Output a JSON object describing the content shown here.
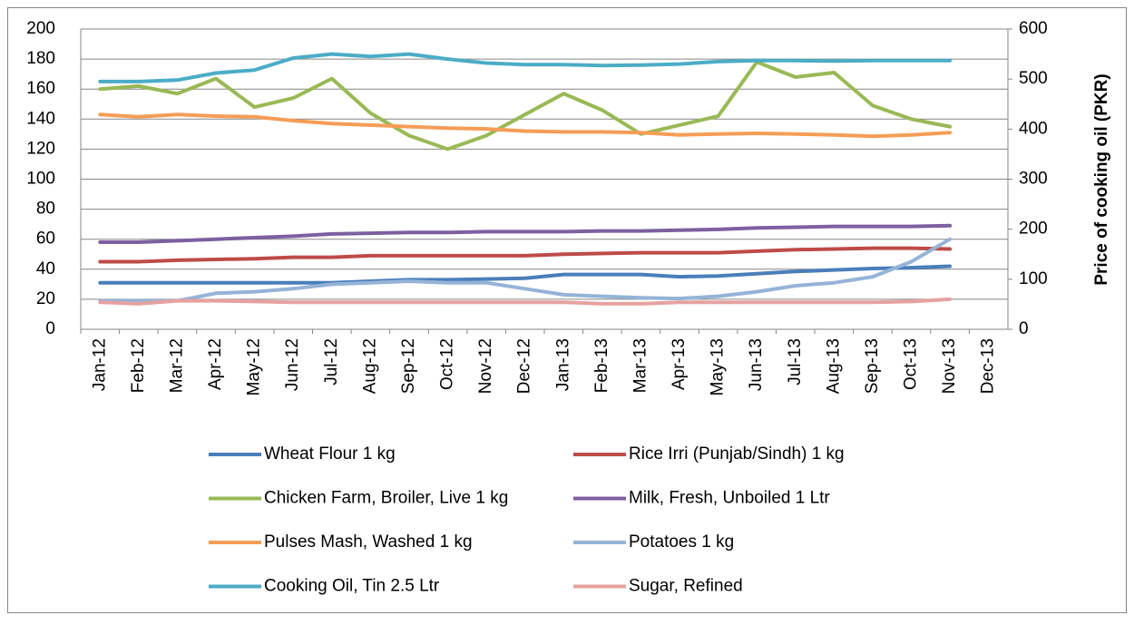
{
  "chart_data": {
    "type": "line",
    "categories": [
      "Jan-12",
      "Feb-12",
      "Mar-12",
      "Apr-12",
      "May-12",
      "Jun-12",
      "Jul-12",
      "Aug-12",
      "Sep-12",
      "Oct-12",
      "Nov-12",
      "Dec-12",
      "Jan-13",
      "Feb-13",
      "Mar-13",
      "Apr-13",
      "May-13",
      "Jun-13",
      "Jul-13",
      "Aug-13",
      "Sep-13",
      "Oct-13",
      "Nov-13",
      "Dec-13"
    ],
    "ylim": [
      0,
      200
    ],
    "yticks": [
      0,
      20,
      40,
      60,
      80,
      100,
      120,
      140,
      160,
      180,
      200
    ],
    "y2lim": [
      0,
      600
    ],
    "y2ticks": [
      0,
      100,
      200,
      300,
      400,
      500,
      600
    ],
    "y2label": "Price of cooking oil (PKR)",
    "grid": true,
    "legend": "bottom",
    "series": [
      {
        "name": "Wheat Flour 1 kg",
        "color": "#4a7ebb",
        "values": [
          31,
          31,
          31,
          31,
          31,
          31,
          31,
          32,
          33,
          33,
          33.5,
          34,
          36.5,
          36.5,
          36.5,
          35,
          35.5,
          37,
          38.5,
          39.5,
          40.5,
          41,
          42,
          null
        ]
      },
      {
        "name": "Rice Irri (Punjab/Sindh) 1 kg",
        "color": "#be4b48",
        "values": [
          45,
          45,
          46,
          46.5,
          47,
          48,
          48,
          49,
          49,
          49,
          49,
          49,
          50,
          50.5,
          51,
          51,
          51,
          52,
          53,
          53.5,
          54,
          54,
          53.5,
          null
        ]
      },
      {
        "name": "Chicken Farm, Broiler, Live 1 kg",
        "color": "#98b954",
        "values": [
          160,
          162,
          157,
          167,
          148,
          154,
          167,
          144,
          129,
          120,
          129,
          143,
          157,
          146,
          130,
          136,
          142,
          178,
          168,
          171,
          149,
          140,
          135,
          null
        ]
      },
      {
        "name": "Milk, Fresh, Unboiled 1 Ltr",
        "color": "#7d60a0",
        "values": [
          58,
          58,
          59,
          60,
          61,
          62,
          63.5,
          64,
          64.5,
          64.5,
          65,
          65,
          65,
          65.5,
          65.5,
          66,
          66.5,
          67.5,
          68,
          68.5,
          68.5,
          68.5,
          69,
          null
        ]
      },
      {
        "name": "Pulses Mash, Washed 1 kg",
        "color": "#f59d56",
        "values": [
          143,
          141.5,
          143,
          142,
          141.5,
          139,
          137,
          136,
          135,
          134,
          133.5,
          132,
          131.5,
          131.5,
          131,
          129.5,
          130,
          130.5,
          130,
          129.5,
          128.5,
          129.5,
          131,
          null
        ]
      },
      {
        "name": "Potatoes 1 kg",
        "color": "#95b3d7",
        "values": [
          19,
          19,
          19,
          24,
          25,
          27,
          30,
          31,
          32,
          31,
          31,
          27,
          23,
          22,
          21,
          20.5,
          22,
          25,
          29,
          31,
          35,
          45,
          60,
          null
        ]
      },
      {
        "name": "Cooking Oil, Tin 2.5 Ltr",
        "color": "#4bacc6",
        "axis": "y2",
        "values": [
          495,
          495,
          498,
          512,
          518,
          542,
          550,
          545,
          550,
          540,
          532,
          529,
          529,
          527,
          528,
          530,
          535,
          537,
          537,
          536,
          537,
          537,
          537,
          null
        ]
      },
      {
        "name": "Sugar, Refined",
        "color": "#e6a2a0",
        "values": [
          18,
          17,
          19,
          19,
          18.5,
          18,
          18,
          18,
          18,
          18,
          18,
          18,
          18,
          17,
          17,
          18,
          18,
          18,
          18,
          18,
          18,
          18.5,
          20,
          null
        ]
      }
    ]
  }
}
